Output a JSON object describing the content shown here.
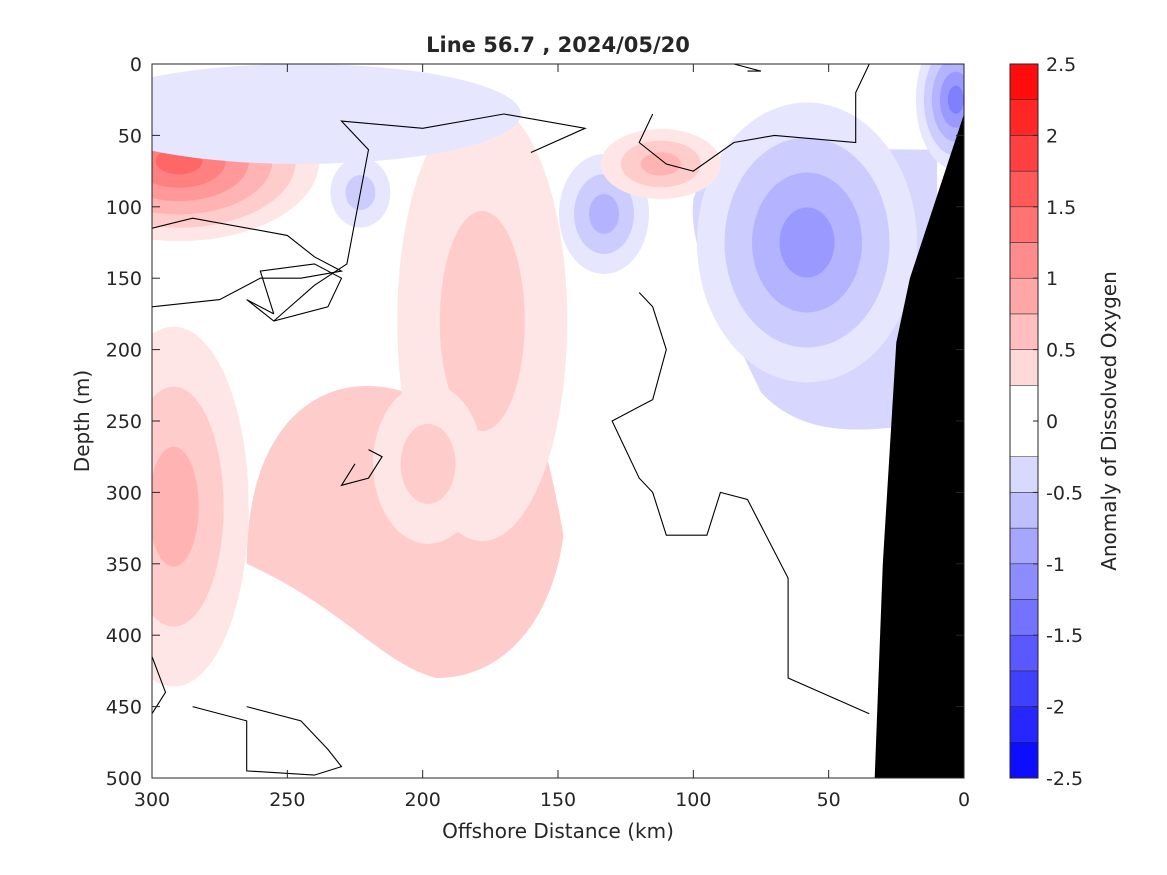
{
  "chart_data": {
    "type": "heatmap",
    "title": "Line 56.7 , 2024/05/20",
    "xlabel": "Offshore Distance (km)",
    "ylabel": "Depth (m)",
    "xlim": [
      300,
      0
    ],
    "ylim": [
      0,
      500
    ],
    "x_reversed": true,
    "y_reversed": true,
    "x_ticks": [
      300,
      250,
      200,
      150,
      100,
      50,
      0
    ],
    "y_ticks": [
      0,
      50,
      100,
      150,
      200,
      250,
      300,
      350,
      400,
      450,
      500
    ],
    "colorbar": {
      "label": "Anomaly of Dissolved Oxygen",
      "range": [
        -2.5,
        2.5
      ],
      "ticks": [
        "2.5",
        "2",
        "1.5",
        "1",
        "0.5",
        "0",
        "-0.5",
        "-1",
        "-1.5",
        "-2",
        "-2.5"
      ],
      "tick_values": [
        2.5,
        2,
        1.5,
        1,
        0.5,
        0,
        -0.5,
        -1,
        -1.5,
        -2,
        -2.5
      ],
      "levels": [
        -2.5,
        -2.25,
        -2,
        -1.75,
        -1.5,
        -1.25,
        -1,
        -0.75,
        -0.5,
        -0.25,
        0.25,
        0.5,
        0.75,
        1,
        1.25,
        1.5,
        1.75,
        2,
        2.25,
        2.5
      ]
    },
    "contour_levels": [
      0
    ],
    "positive_color": "#ff0000",
    "negative_color": "#0000ff",
    "neutral_color": "#ffffff",
    "bottom_mask_color": "#000000",
    "anomalies": [
      {
        "name": "positive-core-shallow-offshore",
        "x": 290,
        "depth": 68,
        "value": 1.6
      },
      {
        "name": "positive-deep-offshore",
        "x": 292,
        "depth": 310,
        "value": 1.0
      },
      {
        "name": "positive-tongue-150-200km",
        "x": 178,
        "depth": 180,
        "value": 0.6
      },
      {
        "name": "positive-lens-200km",
        "x": 198,
        "depth": 280,
        "value": 0.6
      },
      {
        "name": "negative-core-nearshore",
        "x": 58,
        "depth": 125,
        "value": -1.1
      },
      {
        "name": "negative-surface-coast",
        "x": 3,
        "depth": 25,
        "value": -1.3
      },
      {
        "name": "negative-lens-130km",
        "x": 133,
        "depth": 105,
        "value": -0.8
      },
      {
        "name": "negative-lens-220km",
        "x": 223,
        "depth": 90,
        "value": -0.6
      },
      {
        "name": "negative-surface-offshore",
        "x": 245,
        "depth": 35,
        "value": -0.4
      },
      {
        "name": "positive-patch-110km",
        "x": 112,
        "depth": 70,
        "value": 0.9
      }
    ],
    "bathymetry": [
      {
        "x": 0,
        "depth": 35
      },
      {
        "x": 20,
        "depth": 150
      },
      {
        "x": 25,
        "depth": 195
      },
      {
        "x": 30,
        "depth": 350
      },
      {
        "x": 33,
        "depth": 500
      }
    ]
  }
}
